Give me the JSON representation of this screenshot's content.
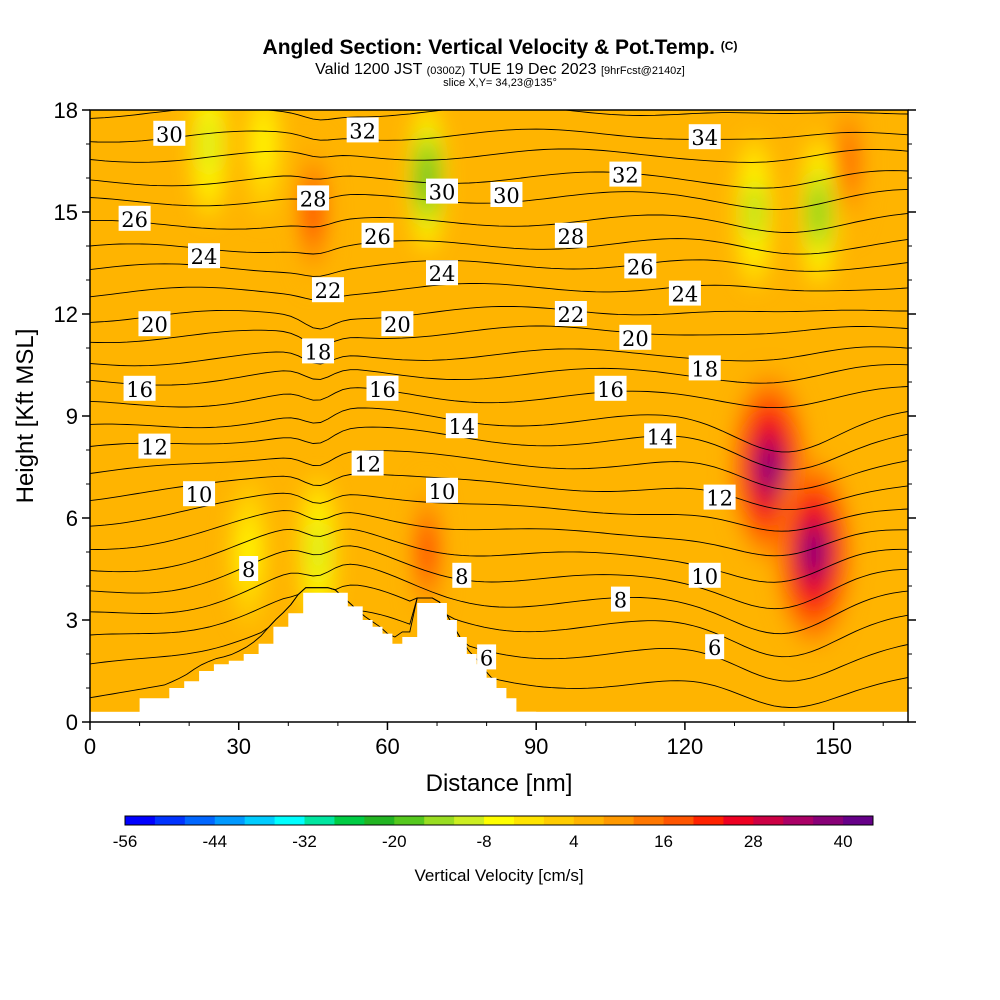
{
  "header": {
    "title": "Angled Section: Vertical Velocity & Pot.Temp.",
    "title_mark": "(C)",
    "valid_prefix": "Valid 1200 JST",
    "valid_utc": "(0300Z)",
    "valid_date": "TUE 19 Dec 2023",
    "forecast": "[9hrFcst@2140z]",
    "slice": "slice X,Y= 34,23@135°"
  },
  "chart_data": {
    "type": "heatmap",
    "xlabel": "Distance [nm]",
    "ylabel": "Height [Kft MSL]",
    "xlim": [
      0,
      165
    ],
    "ylim": [
      0,
      18
    ],
    "xticks": [
      0,
      30,
      60,
      90,
      120,
      150
    ],
    "yticks": [
      0,
      3,
      6,
      9,
      12,
      15,
      18
    ],
    "colorbar": {
      "label": "Vertical Velocity [cm/s]",
      "ticks": [
        -56,
        -44,
        -32,
        -20,
        -8,
        4,
        16,
        28,
        40
      ],
      "colors": [
        "#0000ff",
        "#0033ff",
        "#0066ff",
        "#0099ff",
        "#00ccff",
        "#00ffff",
        "#00e6a0",
        "#00cc44",
        "#22b422",
        "#55c81e",
        "#99dd22",
        "#ccee22",
        "#ffff00",
        "#ffe400",
        "#ffcc00",
        "#ffb400",
        "#ff9900",
        "#ff7700",
        "#ff5500",
        "#ff2200",
        "#ee0022",
        "#cc0044",
        "#aa0066",
        "#880077",
        "#660088"
      ]
    },
    "velocity_field": {
      "background_cm_s": 4,
      "features": [
        {
          "x": 45,
          "y": 15,
          "value": 22,
          "kind": "updraft"
        },
        {
          "x": 68,
          "y": 16,
          "value": -24,
          "kind": "downdraft"
        },
        {
          "x": 68,
          "y": 5,
          "value": 22,
          "kind": "updraft"
        },
        {
          "x": 46,
          "y": 5,
          "value": -12,
          "kind": "downdraft"
        },
        {
          "x": 32,
          "y": 5,
          "value": -8,
          "kind": "downdraft"
        },
        {
          "x": 137,
          "y": 7.5,
          "value": 40,
          "kind": "updraft"
        },
        {
          "x": 146,
          "y": 5,
          "value": 40,
          "kind": "updraft"
        },
        {
          "x": 147,
          "y": 15,
          "value": -20,
          "kind": "downdraft"
        },
        {
          "x": 134,
          "y": 15,
          "value": -14,
          "kind": "downdraft"
        },
        {
          "x": 153,
          "y": 16.5,
          "value": 18,
          "kind": "updraft"
        },
        {
          "x": 24,
          "y": 17,
          "value": -10,
          "kind": "downdraft"
        },
        {
          "x": 35,
          "y": 17,
          "value": -8,
          "kind": "downdraft"
        }
      ]
    },
    "potential_temperature": {
      "units": "C",
      "interval": 1,
      "isentropes_y_at_x0": [
        0.7,
        1.6,
        2.4,
        3.1,
        3.8,
        4.5,
        5.2,
        5.9,
        6.6,
        7.3,
        8.0,
        8.6,
        9.3,
        10.0,
        10.6,
        11.3,
        11.9,
        12.6,
        13.3,
        13.9,
        14.6,
        15.3,
        15.9,
        16.6,
        17.2,
        17.9
      ],
      "labels": [
        {
          "text": "30",
          "x": 16,
          "y": 17.3
        },
        {
          "text": "32",
          "x": 55,
          "y": 17.4
        },
        {
          "text": "34",
          "x": 124,
          "y": 17.2
        },
        {
          "text": "28",
          "x": 45,
          "y": 15.4
        },
        {
          "text": "30",
          "x": 71,
          "y": 15.6
        },
        {
          "text": "30",
          "x": 84,
          "y": 15.5
        },
        {
          "text": "32",
          "x": 108,
          "y": 16.1
        },
        {
          "text": "26",
          "x": 9,
          "y": 14.8
        },
        {
          "text": "26",
          "x": 58,
          "y": 14.3
        },
        {
          "text": "28",
          "x": 97,
          "y": 14.3
        },
        {
          "text": "24",
          "x": 23,
          "y": 13.7
        },
        {
          "text": "24",
          "x": 71,
          "y": 13.2
        },
        {
          "text": "26",
          "x": 111,
          "y": 13.4
        },
        {
          "text": "22",
          "x": 48,
          "y": 12.7
        },
        {
          "text": "24",
          "x": 120,
          "y": 12.6
        },
        {
          "text": "20",
          "x": 13,
          "y": 11.7
        },
        {
          "text": "20",
          "x": 62,
          "y": 11.7
        },
        {
          "text": "22",
          "x": 97,
          "y": 12.0
        },
        {
          "text": "20",
          "x": 110,
          "y": 11.3
        },
        {
          "text": "18",
          "x": 46,
          "y": 10.9
        },
        {
          "text": "18",
          "x": 124,
          "y": 10.4
        },
        {
          "text": "16",
          "x": 10,
          "y": 9.8
        },
        {
          "text": "16",
          "x": 59,
          "y": 9.8
        },
        {
          "text": "16",
          "x": 105,
          "y": 9.8
        },
        {
          "text": "14",
          "x": 75,
          "y": 8.7
        },
        {
          "text": "14",
          "x": 115,
          "y": 8.4
        },
        {
          "text": "12",
          "x": 13,
          "y": 8.1
        },
        {
          "text": "12",
          "x": 56,
          "y": 7.6
        },
        {
          "text": "12",
          "x": 127,
          "y": 6.6
        },
        {
          "text": "10",
          "x": 22,
          "y": 6.7
        },
        {
          "text": "10",
          "x": 71,
          "y": 6.8
        },
        {
          "text": "10",
          "x": 124,
          "y": 4.3
        },
        {
          "text": "8",
          "x": 32,
          "y": 4.5
        },
        {
          "text": "8",
          "x": 75,
          "y": 4.3
        },
        {
          "text": "8",
          "x": 107,
          "y": 3.6
        },
        {
          "text": "6",
          "x": 80,
          "y": 1.9
        },
        {
          "text": "6",
          "x": 126,
          "y": 2.2
        }
      ]
    },
    "terrain": {
      "x": [
        0,
        8,
        10,
        13,
        16,
        19,
        22,
        25,
        28,
        31,
        34,
        37,
        40,
        43,
        46,
        49,
        52,
        55,
        57,
        59,
        61,
        63,
        65,
        66,
        68,
        70,
        72,
        74,
        76,
        78,
        80,
        82,
        84,
        86,
        88,
        90
      ],
      "height": [
        0,
        0,
        0.7,
        0.7,
        1.0,
        1.2,
        1.5,
        1.7,
        1.8,
        2.0,
        2.3,
        2.8,
        3.2,
        3.8,
        3.8,
        3.8,
        3.4,
        3.0,
        2.8,
        2.6,
        2.3,
        2.5,
        2.5,
        3.5,
        3.5,
        3.5,
        3.0,
        2.5,
        2.0,
        1.7,
        1.3,
        1.0,
        0.7,
        0.3,
        0.3,
        0
      ]
    }
  }
}
